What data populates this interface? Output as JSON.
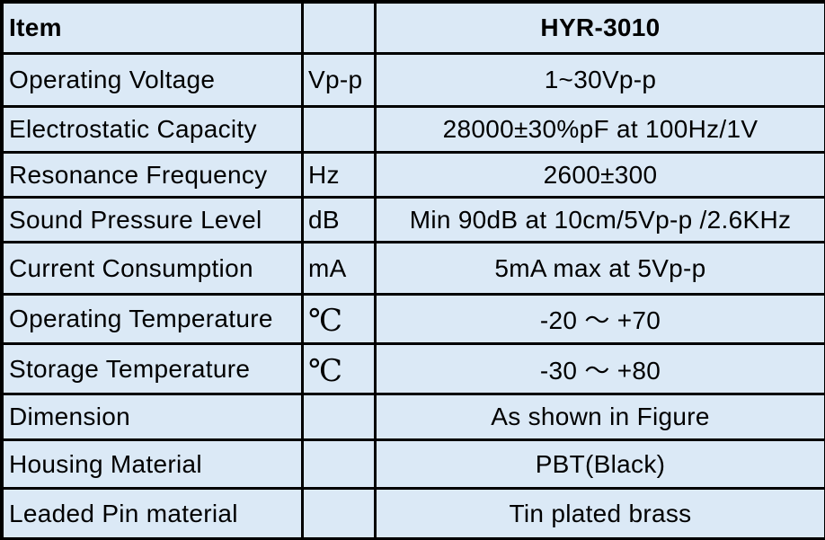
{
  "header": {
    "item": "Item",
    "unit": "",
    "model": "HYR-3010"
  },
  "rows": [
    {
      "item": "Operating Voltage",
      "unit": "Vp-p",
      "value": "1~30Vp-p"
    },
    {
      "item": "Electrostatic Capacity",
      "unit": "",
      "value": "28000±30%pF at 100Hz/1V"
    },
    {
      "item": "Resonance Frequency",
      "unit": "Hz",
      "value": "2600±300"
    },
    {
      "item": "Sound Pressure Level",
      "unit": "dB",
      "value": "Min 90dB at 10cm/5Vp-p /2.6KHz"
    },
    {
      "item": "Current Consumption",
      "unit": "mA",
      "value": "5mA max at 5Vp-p"
    },
    {
      "item": "Operating Temperature",
      "unit": "℃",
      "value": "-20 ～ +70"
    },
    {
      "item": "Storage Temperature",
      "unit": "℃",
      "value": "-30 ～ +80"
    },
    {
      "item": "Dimension",
      "unit": "",
      "value": "As shown in Figure"
    },
    {
      "item": "Housing Material",
      "unit": "",
      "value": "PBT(Black)"
    },
    {
      "item": "Leaded Pin material",
      "unit": "",
      "value": "Tin plated brass"
    }
  ]
}
